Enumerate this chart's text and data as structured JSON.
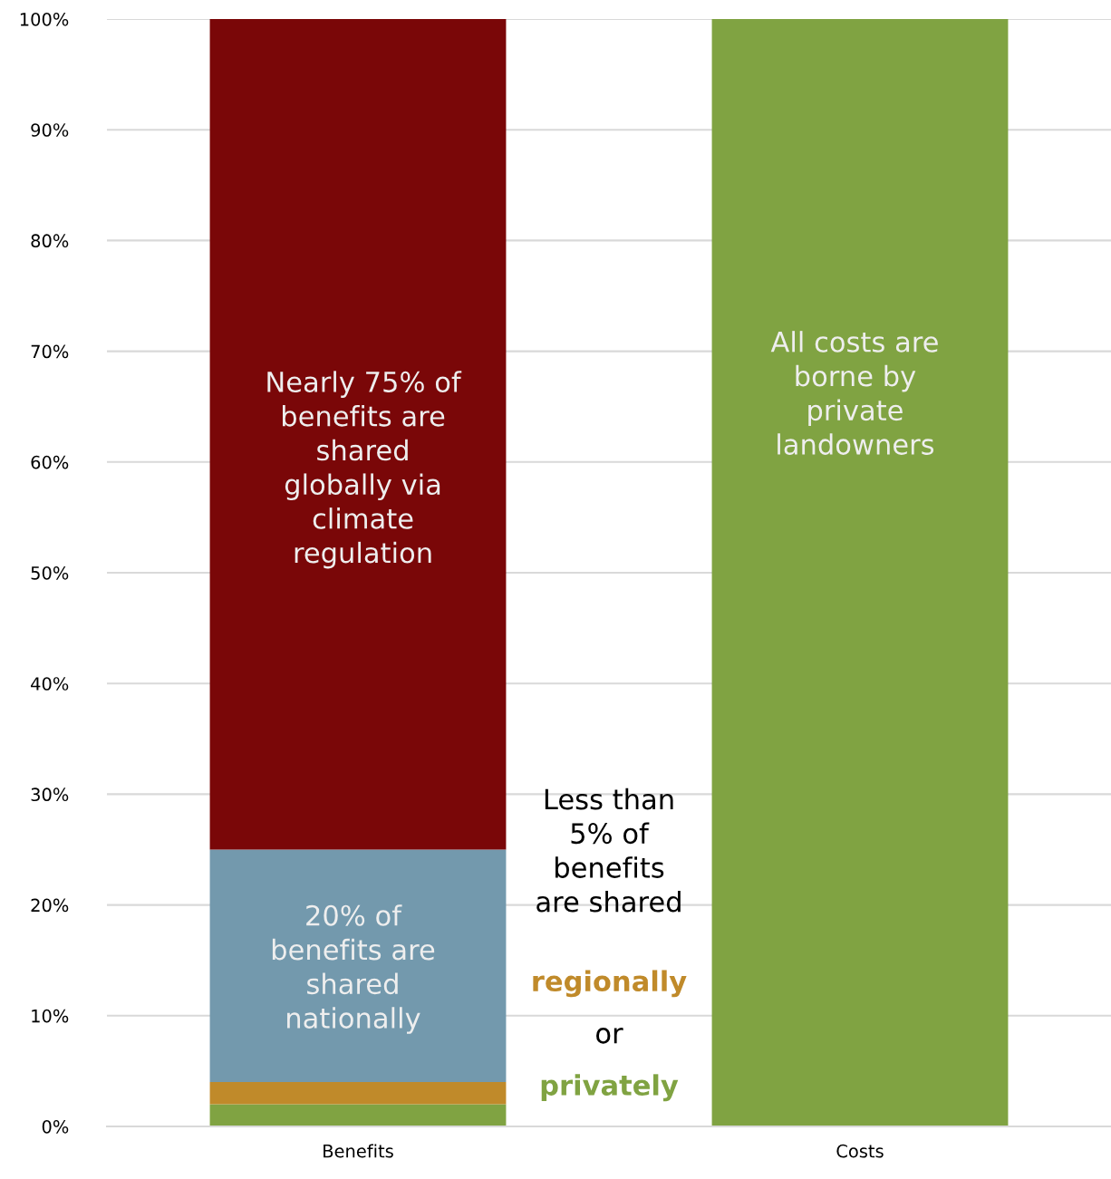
{
  "chart_data": {
    "type": "bar",
    "stacked": true,
    "categories": [
      "Benefits",
      "Costs"
    ],
    "series": [
      {
        "color": "#80a342",
        "values": [
          2,
          100
        ]
      },
      {
        "color": "#c08a2a",
        "values": [
          2,
          null
        ]
      },
      {
        "color": "#7399ad",
        "values": [
          21,
          null
        ]
      },
      {
        "color": "#7a0708",
        "values": [
          75,
          null
        ]
      }
    ],
    "ylim": [
      0,
      100
    ],
    "yticks": [
      {
        "value": 0,
        "label": "0%"
      },
      {
        "value": 10,
        "label": "10%"
      },
      {
        "value": 20,
        "label": "20%"
      },
      {
        "value": 30,
        "label": "30%"
      },
      {
        "value": 40,
        "label": "40%"
      },
      {
        "value": 50,
        "label": "50%"
      },
      {
        "value": 60,
        "label": "60%"
      },
      {
        "value": 70,
        "label": "70%"
      },
      {
        "value": 80,
        "label": "80%"
      },
      {
        "value": 90,
        "label": "90%"
      },
      {
        "value": 100,
        "label": "100%"
      }
    ],
    "grid": "y",
    "annotations": [
      "Nearly 75% of\nbenefits are\nshared\nglobally via\nclimate\nregulation",
      "20% of\nbenefits are\nshared\nnationally",
      "Less than\n5% of\nbenefits\nare shared",
      "regionally",
      "or",
      "privately",
      "All costs are\nborne by\nprivate\nlandowners"
    ]
  }
}
